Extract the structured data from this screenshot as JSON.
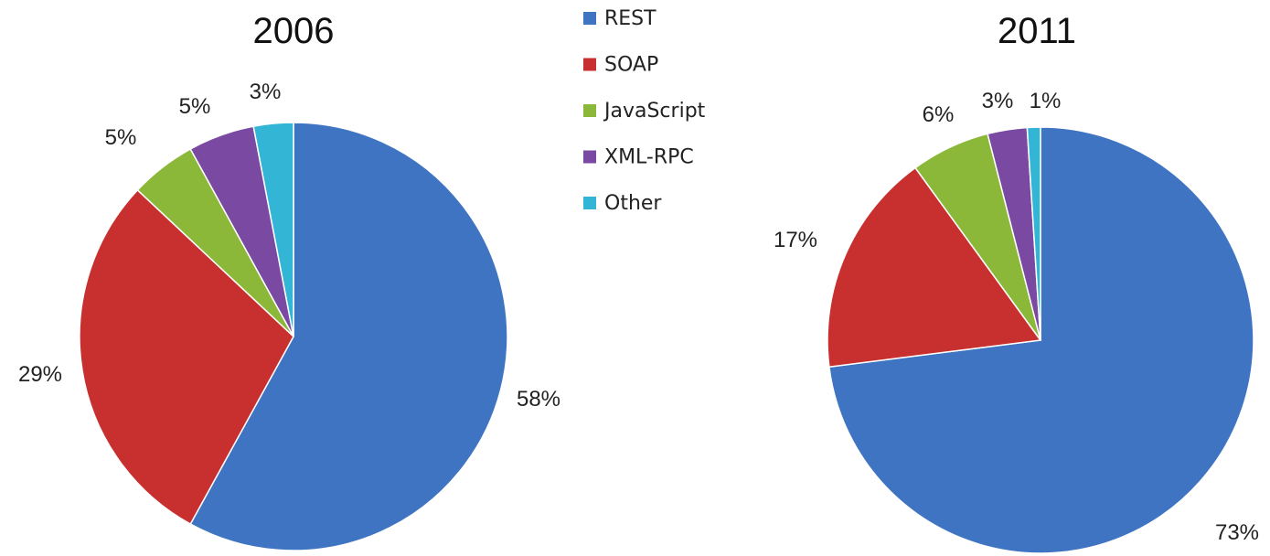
{
  "chart_data": [
    {
      "type": "pie",
      "title": "2006",
      "categories": [
        "REST",
        "SOAP",
        "JavaScript",
        "XML-RPC",
        "Other"
      ],
      "values": [
        58,
        29,
        5,
        5,
        3
      ],
      "labels": [
        "58%",
        "29%",
        "5%",
        "5%",
        "3%"
      ]
    },
    {
      "type": "pie",
      "title": "2011",
      "categories": [
        "REST",
        "SOAP",
        "JavaScript",
        "XML-RPC",
        "Other"
      ],
      "values": [
        73,
        17,
        6,
        3,
        1
      ],
      "labels": [
        "73%",
        "17%",
        "6%",
        "3%",
        "1%"
      ]
    }
  ],
  "legend": {
    "placement": "top-center",
    "items": [
      "REST",
      "SOAP",
      "JavaScript",
      "XML-RPC",
      "Other"
    ]
  },
  "colors": {
    "REST": "#3f74c3",
    "SOAP": "#c8302f",
    "JavaScript": "#8cb83a",
    "XML-RPC": "#7a4aa2",
    "Other": "#33b5d6"
  }
}
